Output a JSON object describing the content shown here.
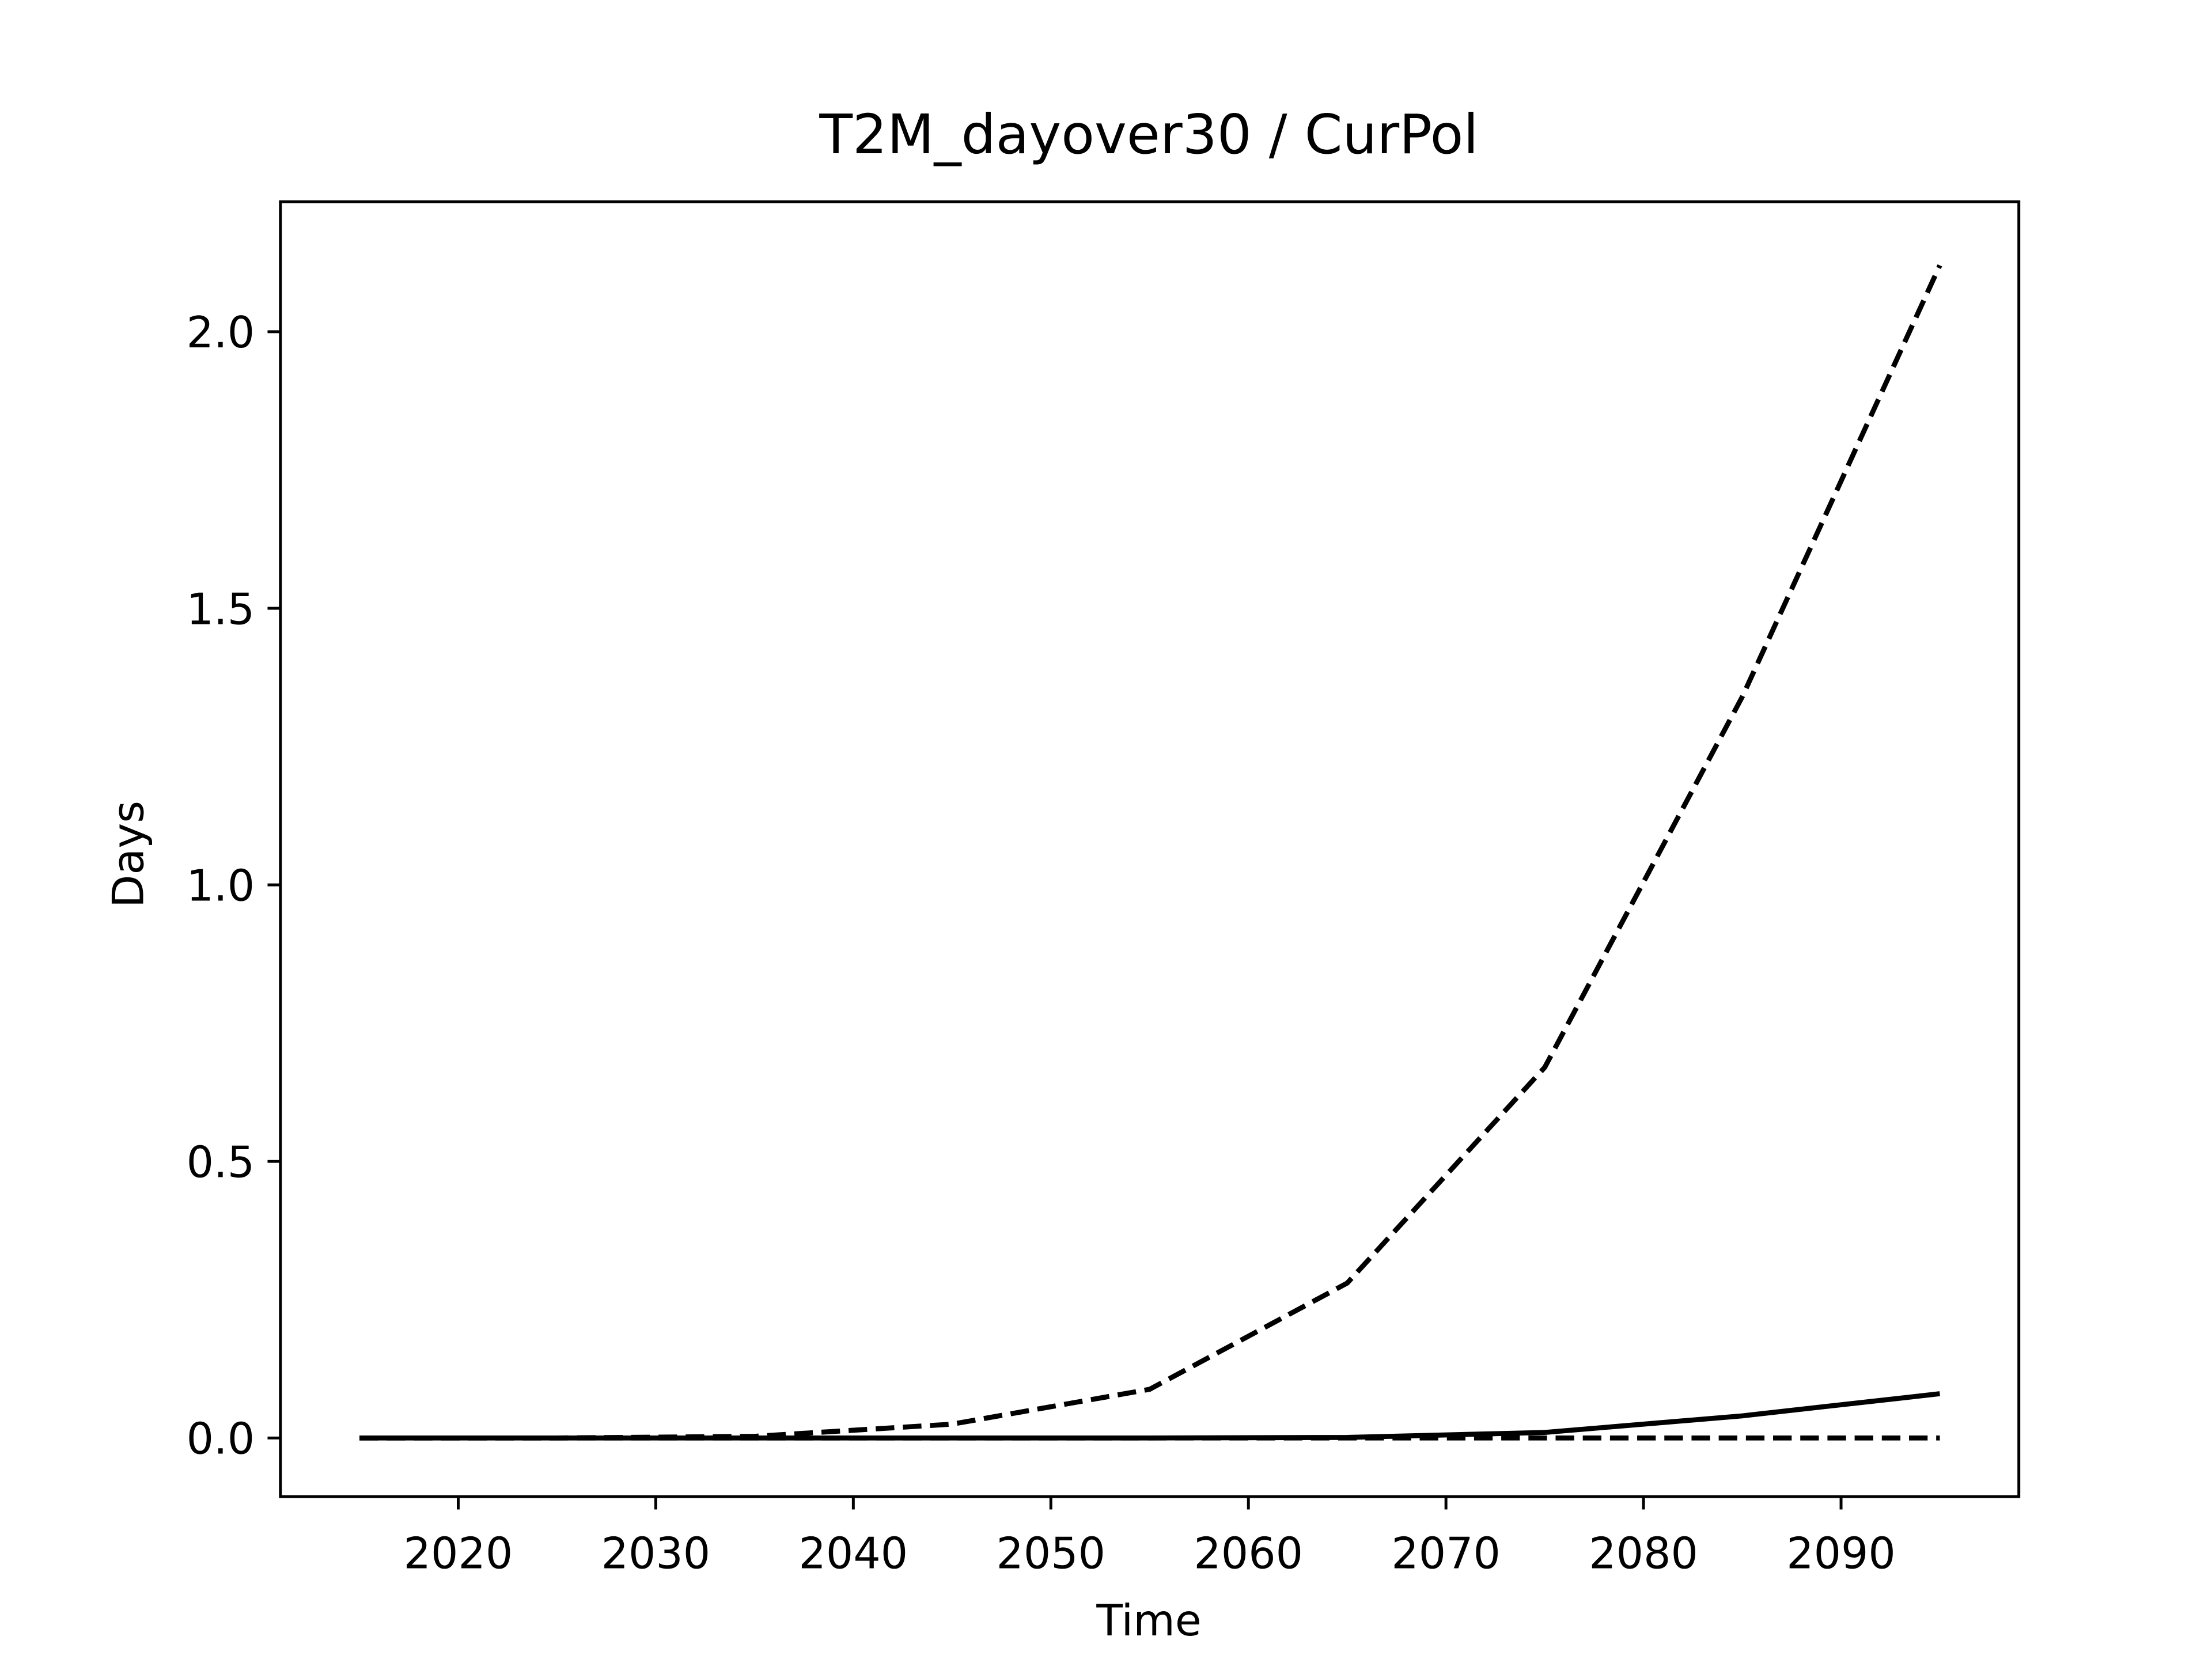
{
  "chart_data": {
    "type": "line",
    "title": "T2M_dayover30 / CurPol",
    "x_label": "Time",
    "y_label": "Days",
    "x": [
      2015,
      2025,
      2035,
      2045,
      2055,
      2065,
      2075,
      2085,
      2095
    ],
    "series": [
      {
        "color": "#000000",
        "linestyle": "dashed",
        "values": [
          0,
          0,
          0.003,
          0.025,
          0.088,
          0.28,
          0.67,
          1.34,
          2.12
        ]
      },
      {
        "color": "#000000",
        "linestyle": "solid",
        "values": [
          0,
          0,
          0,
          0,
          0,
          0.001,
          0.01,
          0.04,
          0.08
        ]
      },
      {
        "color": "#000000",
        "linestyle": "dashed",
        "values": [
          0,
          0,
          0,
          0,
          0,
          0,
          0,
          0,
          0
        ]
      }
    ],
    "xlim": [
      2011,
      2099
    ],
    "xticks": [
      2020,
      2030,
      2040,
      2050,
      2060,
      2070,
      2080,
      2090
    ],
    "ylim": [
      -0.106,
      2.235
    ],
    "yticks": [
      {
        "value": 0,
        "label": "0.0"
      },
      {
        "value": 0.5,
        "label": "0.5"
      },
      {
        "value": 1,
        "label": "1.0"
      },
      {
        "value": 1.5,
        "label": "1.5"
      },
      {
        "value": 2,
        "label": "2.0"
      }
    ],
    "grid": false
  }
}
